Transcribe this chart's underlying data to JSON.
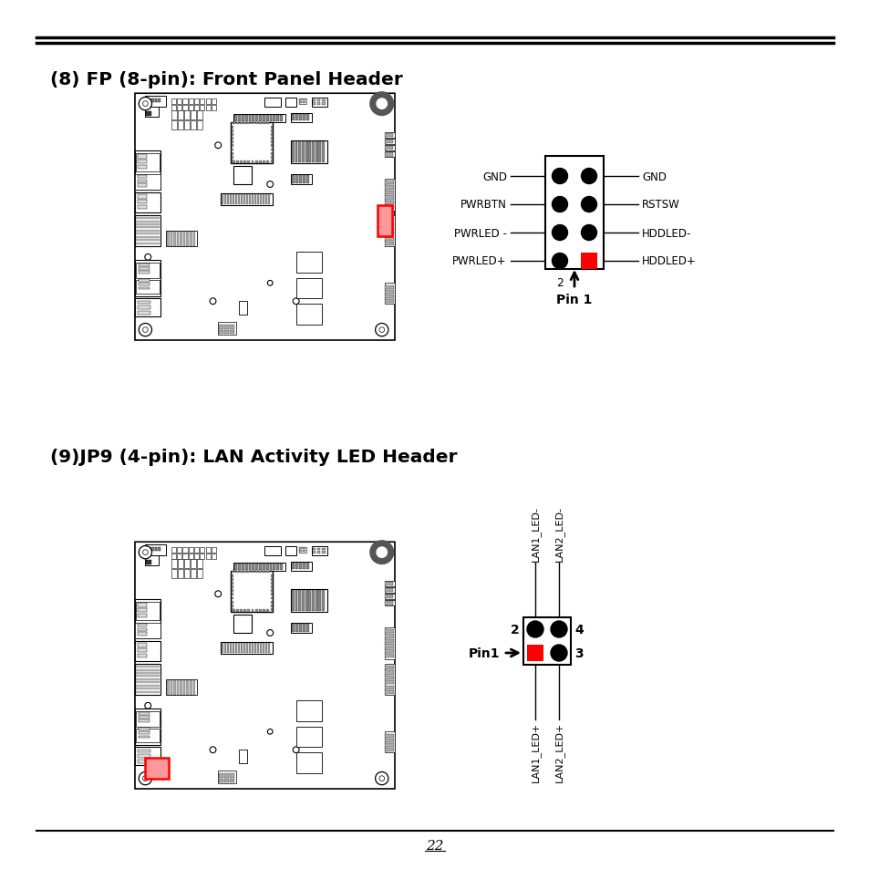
{
  "bg_color": "#ffffff",
  "title1": "(8) FP (8-pin): Front Panel Header",
  "title2": "(9)JP9 (4-pin): LAN Activity LED Header",
  "page_number": "22",
  "fp8_left_labels": [
    "GND",
    "PWRBTN",
    "PWRLED -",
    "PWRLED+"
  ],
  "fp8_right_labels": [
    "GND",
    "RSTSW",
    "HDDLED-",
    "HDDLED+"
  ],
  "fp8_pin1_label": "Pin 1",
  "fp8_pin2_label": "2",
  "jp9_top_labels": [
    "LAN1_LED-",
    "LAN2_LED-"
  ],
  "jp9_bottom_labels": [
    "LAN1_LED+",
    "LAN2_LED+"
  ],
  "jp9_pin1_label": "Pin1"
}
